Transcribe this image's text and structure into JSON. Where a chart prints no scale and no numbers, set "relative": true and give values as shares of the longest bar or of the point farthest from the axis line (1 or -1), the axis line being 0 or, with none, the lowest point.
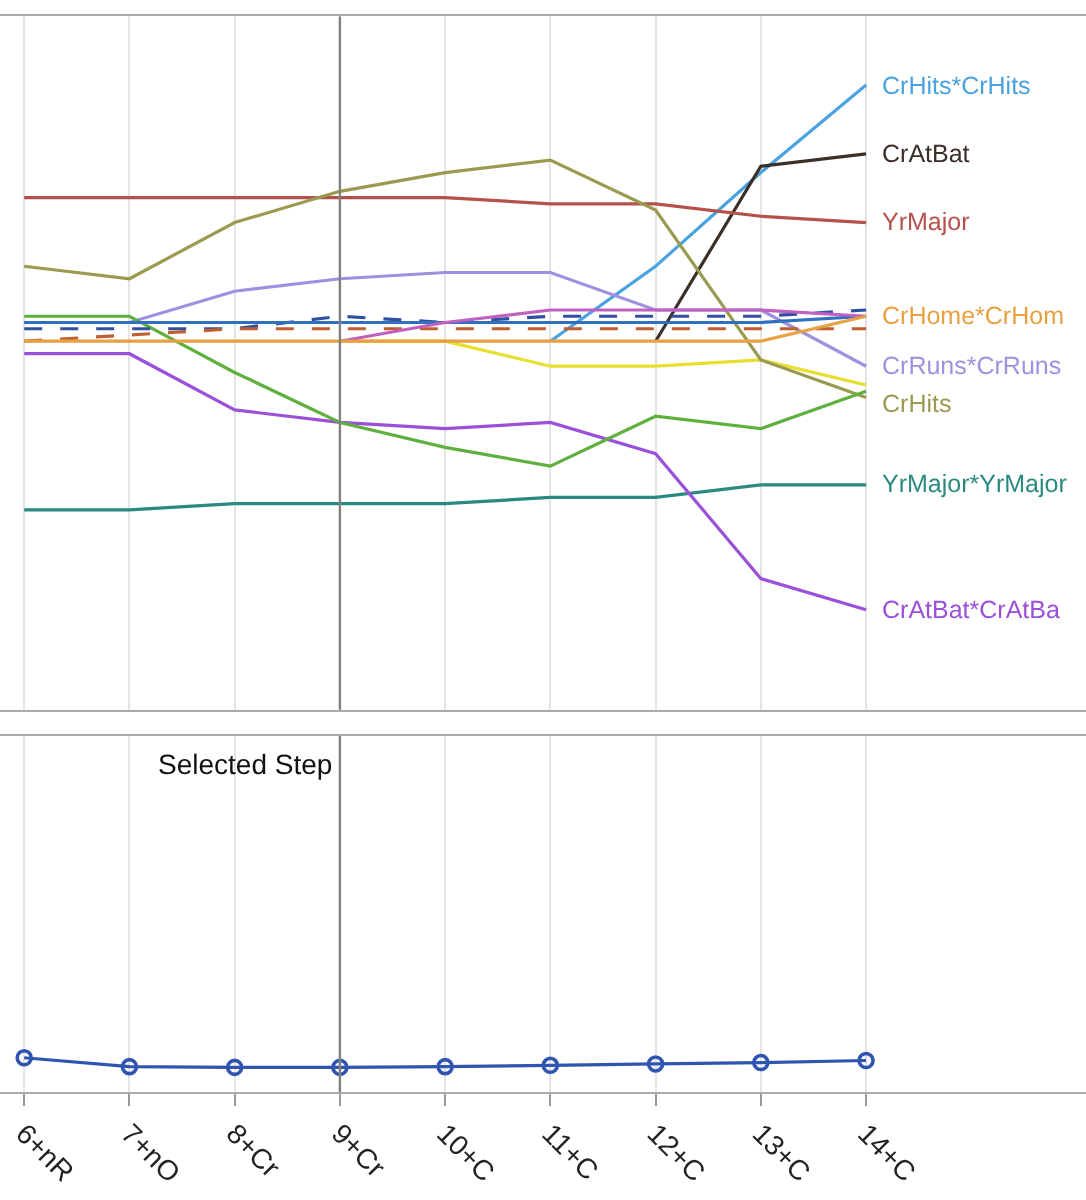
{
  "chart_data": [
    {
      "type": "line",
      "relative": true,
      "grid": "x",
      "tick_labels": false,
      "marker": "none",
      "categories": [
        "6+nR",
        "7+nO",
        "8+Cr",
        "9+Cr",
        "10+C",
        "11+C",
        "12+C",
        "13+C",
        "14+C"
      ],
      "series": [
        {
          "name": "CrHits*CrHits",
          "color": "#4aa3df",
          "values": [
            null,
            null,
            null,
            null,
            null,
            0.59,
            0.71,
            0.86,
            1.0
          ]
        },
        {
          "name": "CrAtBat",
          "color": "#3b2f2a",
          "values": [
            null,
            null,
            null,
            null,
            null,
            null,
            0.59,
            0.87,
            0.89
          ]
        },
        {
          "name": "YrMajor",
          "color": "#b5504a",
          "values": [
            0.82,
            0.82,
            0.82,
            0.82,
            0.82,
            0.81,
            0.81,
            0.79,
            0.78
          ]
        },
        {
          "color": "#e8e030",
          "values": [
            null,
            null,
            null,
            0.59,
            0.59,
            0.55,
            0.55,
            0.56,
            0.52
          ]
        },
        {
          "name": "CrRuns*CrRuns",
          "color": "#a090e0",
          "values": [
            0.62,
            0.62,
            0.67,
            0.69,
            0.7,
            0.7,
            0.64,
            0.64,
            0.55
          ]
        },
        {
          "name": "CrHits",
          "color": "#9a9a50",
          "values": [
            0.71,
            0.69,
            0.78,
            0.83,
            0.86,
            0.88,
            0.8,
            0.56,
            0.5
          ]
        },
        {
          "name": "YrMajor*YrMajor",
          "color": "#2a8a80",
          "values": [
            0.32,
            0.32,
            0.33,
            0.33,
            0.33,
            0.34,
            0.34,
            0.36,
            0.36
          ]
        },
        {
          "name": "CrAtBat*CrAtBa",
          "color": "#9a50d8",
          "values": [
            0.57,
            0.57,
            0.48,
            0.46,
            0.45,
            0.46,
            0.41,
            0.21,
            0.16
          ]
        },
        {
          "color": "#60b040",
          "values": [
            0.63,
            0.63,
            0.54,
            0.46,
            0.42,
            0.39,
            0.47,
            0.45,
            0.51
          ]
        },
        {
          "color": "#3050a0",
          "line_style": "dashed",
          "values": [
            0.61,
            0.61,
            0.61,
            0.63,
            0.62,
            0.63,
            0.63,
            0.63,
            0.64
          ]
        },
        {
          "color": "#c06030",
          "line_style": "dashed",
          "values": [
            0.59,
            0.6,
            0.61,
            0.61,
            0.61,
            0.61,
            0.61,
            0.61,
            0.61
          ]
        },
        {
          "color": "#3070c0",
          "values": [
            0.62,
            0.62,
            0.62,
            0.62,
            0.62,
            0.62,
            0.62,
            0.62,
            0.63
          ]
        },
        {
          "color": "#c060c0",
          "values": [
            null,
            null,
            null,
            0.59,
            0.62,
            0.64,
            0.64,
            0.64,
            0.63
          ]
        },
        {
          "name": "CrHome*CrHom",
          "color": "#e8a040",
          "values": [
            0.59,
            0.59,
            0.59,
            0.59,
            0.59,
            0.59,
            0.59,
            0.59,
            0.63
          ]
        }
      ],
      "ref_lines": [
        {
          "axis": "x",
          "value": "9+Cr",
          "color": "#808080"
        }
      ]
    },
    {
      "type": "line",
      "relative": true,
      "grid": "x",
      "tick_labels": "x",
      "marker": "circle",
      "categories": [
        "6+nR",
        "7+nO",
        "8+Cr",
        "9+Cr",
        "10+C",
        "11+C",
        "12+C",
        "13+C",
        "14+C"
      ],
      "series": [
        {
          "color": "#2f55b0",
          "values": [
            1.0,
            0.74,
            0.72,
            0.72,
            0.74,
            0.78,
            0.82,
            0.86,
            0.92
          ]
        }
      ],
      "ref_lines": [
        {
          "axis": "x",
          "value": "9+Cr",
          "color": "#808080",
          "label": "Selected Step"
        }
      ]
    }
  ]
}
